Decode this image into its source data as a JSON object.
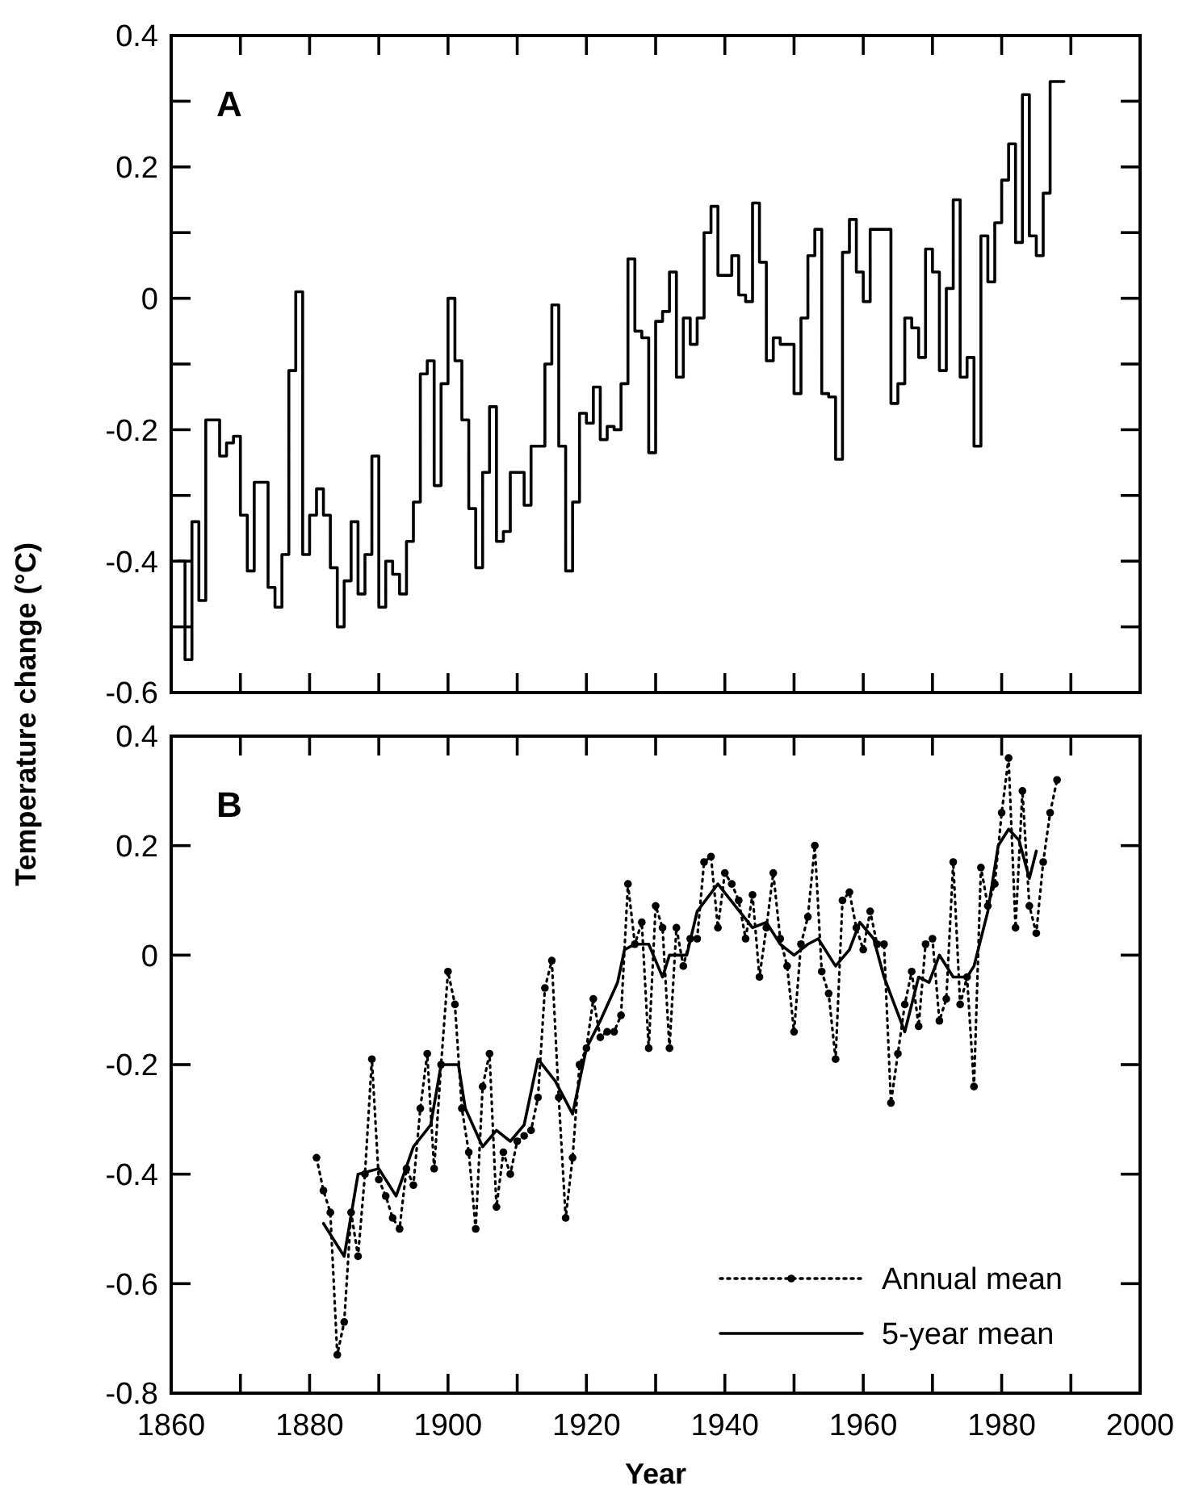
{
  "chart_data": [
    {
      "type": "step",
      "title": "A",
      "x": [
        1861,
        1862,
        1863,
        1864,
        1865,
        1866,
        1867,
        1868,
        1869,
        1870,
        1871,
        1872,
        1873,
        1874,
        1875,
        1876,
        1877,
        1878,
        1879,
        1880,
        1881,
        1882,
        1883,
        1884,
        1885,
        1886,
        1887,
        1888,
        1889,
        1890,
        1891,
        1892,
        1893,
        1894,
        1895,
        1896,
        1897,
        1898,
        1899,
        1900,
        1901,
        1902,
        1903,
        1904,
        1905,
        1906,
        1907,
        1908,
        1909,
        1910,
        1911,
        1912,
        1913,
        1914,
        1915,
        1916,
        1917,
        1918,
        1919,
        1920,
        1921,
        1922,
        1923,
        1924,
        1925,
        1926,
        1927,
        1928,
        1929,
        1930,
        1931,
        1932,
        1933,
        1934,
        1935,
        1936,
        1937,
        1938,
        1939,
        1940,
        1941,
        1942,
        1943,
        1944,
        1945,
        1946,
        1947,
        1948,
        1949,
        1950,
        1951,
        1952,
        1953,
        1954,
        1955,
        1956,
        1957,
        1958,
        1959,
        1960,
        1961,
        1962,
        1963,
        1964,
        1965,
        1966,
        1967,
        1968,
        1969,
        1970,
        1971,
        1972,
        1973,
        1974,
        1975,
        1976,
        1977,
        1978,
        1979,
        1980,
        1981,
        1982,
        1983,
        1984,
        1985,
        1986,
        1987,
        1988,
        1989
      ],
      "values": [
        -0.4,
        -0.55,
        -0.34,
        -0.46,
        -0.185,
        -0.185,
        -0.24,
        -0.22,
        -0.21,
        -0.33,
        -0.415,
        -0.28,
        -0.28,
        -0.44,
        -0.47,
        -0.39,
        -0.11,
        0.01,
        -0.39,
        -0.33,
        -0.29,
        -0.33,
        -0.41,
        -0.5,
        -0.43,
        -0.34,
        -0.45,
        -0.39,
        -0.24,
        -0.47,
        -0.4,
        -0.42,
        -0.45,
        -0.37,
        -0.31,
        -0.115,
        -0.095,
        -0.285,
        -0.13,
        0.0,
        -0.095,
        -0.185,
        -0.32,
        -0.41,
        -0.265,
        -0.165,
        -0.37,
        -0.355,
        -0.265,
        -0.265,
        -0.315,
        -0.225,
        -0.225,
        -0.1,
        -0.01,
        -0.225,
        -0.415,
        -0.31,
        -0.175,
        -0.19,
        -0.135,
        -0.215,
        -0.195,
        -0.2,
        -0.13,
        0.06,
        -0.05,
        -0.06,
        -0.235,
        -0.035,
        -0.02,
        0.04,
        -0.12,
        -0.03,
        -0.07,
        -0.03,
        0.1,
        0.14,
        0.035,
        0.035,
        0.065,
        0.005,
        -0.005,
        0.145,
        0.055,
        -0.095,
        -0.06,
        -0.07,
        -0.07,
        -0.145,
        -0.03,
        0.065,
        0.105,
        -0.145,
        -0.15,
        -0.245,
        0.07,
        0.12,
        0.04,
        -0.005,
        0.105,
        0.105,
        0.105,
        -0.16,
        -0.13,
        -0.03,
        -0.045,
        -0.09,
        0.075,
        0.04,
        -0.11,
        0.015,
        0.15,
        -0.12,
        -0.09,
        -0.225,
        0.095,
        0.025,
        0.115,
        0.18,
        0.235,
        0.085,
        0.31,
        0.095,
        0.065,
        0.16,
        0.33,
        0.33,
        0.33
      ],
      "color": "#000000",
      "xlim": [
        1860,
        2000
      ],
      "xticks": [
        {
          "value": 1860,
          "label": null
        },
        {
          "value": 1870,
          "label": null
        },
        {
          "value": 1880,
          "label": null
        },
        {
          "value": 1890,
          "label": null
        },
        {
          "value": 1900,
          "label": null
        },
        {
          "value": 1910,
          "label": null
        },
        {
          "value": 1920,
          "label": null
        },
        {
          "value": 1930,
          "label": null
        },
        {
          "value": 1940,
          "label": null
        },
        {
          "value": 1950,
          "label": null
        },
        {
          "value": 1960,
          "label": null
        },
        {
          "value": 1970,
          "label": null
        },
        {
          "value": 1980,
          "label": null
        },
        {
          "value": 1990,
          "label": null
        },
        {
          "value": 2000,
          "label": null
        }
      ],
      "ylim": [
        -0.6,
        0.4
      ],
      "yticks": [
        -0.6,
        {
          "value": -0.5,
          "label": null
        },
        -0.4,
        {
          "value": -0.3,
          "label": null
        },
        -0.2,
        {
          "value": -0.1,
          "label": null
        },
        0,
        {
          "value": 0.1,
          "label": null
        },
        0.2,
        {
          "value": 0.3,
          "label": null
        },
        0.4
      ],
      "tick_labels": "y"
    },
    {
      "type": "line",
      "title": "B",
      "xlabel": "Year",
      "ylabel": "Temperature change (°C)",
      "legend": "bottom right",
      "xlim": [
        1860,
        2000
      ],
      "xticks": [
        1860,
        {
          "value": 1870,
          "label": null
        },
        1880,
        {
          "value": 1890,
          "label": null
        },
        1900,
        {
          "value": 1910,
          "label": null
        },
        1920,
        {
          "value": 1930,
          "label": null
        },
        1940,
        {
          "value": 1950,
          "label": null
        },
        1960,
        {
          "value": 1970,
          "label": null
        },
        1980,
        {
          "value": 1990,
          "label": null
        },
        2000
      ],
      "ylim": [
        -0.8,
        0.4
      ],
      "yticks": [
        -0.8,
        -0.6,
        -0.4,
        -0.2,
        0,
        0.2,
        0.4
      ],
      "series": [
        {
          "name": "Annual mean",
          "type": "line",
          "color": "#000000",
          "line_style": "dotted",
          "marker": "circle",
          "x": [
            1881,
            1882,
            1883,
            1884,
            1885,
            1886,
            1887,
            1888,
            1889,
            1890,
            1891,
            1892,
            1893,
            1894,
            1895,
            1896,
            1897,
            1898,
            1899,
            1900,
            1901,
            1902,
            1903,
            1904,
            1905,
            1906,
            1907,
            1908,
            1909,
            1910,
            1911,
            1912,
            1913,
            1914,
            1915,
            1916,
            1917,
            1918,
            1919,
            1920,
            1921,
            1922,
            1923,
            1924,
            1925,
            1926,
            1927,
            1928,
            1929,
            1930,
            1931,
            1932,
            1933,
            1934,
            1935,
            1936,
            1937,
            1938,
            1939,
            1940,
            1941,
            1942,
            1943,
            1944,
            1945,
            1946,
            1947,
            1948,
            1949,
            1950,
            1951,
            1952,
            1953,
            1954,
            1955,
            1956,
            1957,
            1958,
            1959,
            1960,
            1961,
            1962,
            1963,
            1964,
            1965,
            1966,
            1967,
            1968,
            1969,
            1970,
            1971,
            1972,
            1973,
            1974,
            1975,
            1976,
            1977,
            1978,
            1979,
            1980,
            1981,
            1982,
            1983,
            1984,
            1985,
            1986,
            1987,
            1988
          ],
          "values": [
            -0.37,
            -0.43,
            -0.47,
            -0.73,
            -0.67,
            -0.47,
            -0.55,
            -0.4,
            -0.19,
            -0.41,
            -0.44,
            -0.48,
            -0.5,
            -0.39,
            -0.42,
            -0.28,
            -0.18,
            -0.39,
            -0.2,
            -0.03,
            -0.09,
            -0.28,
            -0.36,
            -0.5,
            -0.24,
            -0.18,
            -0.46,
            -0.36,
            -0.4,
            -0.34,
            -0.33,
            -0.32,
            -0.26,
            -0.06,
            -0.01,
            -0.26,
            -0.48,
            -0.37,
            -0.2,
            -0.17,
            -0.08,
            -0.15,
            -0.14,
            -0.14,
            -0.11,
            0.13,
            0.02,
            0.06,
            -0.17,
            0.09,
            0.05,
            -0.17,
            0.05,
            -0.02,
            0.03,
            0.03,
            0.17,
            0.18,
            0.05,
            0.15,
            0.13,
            0.1,
            0.03,
            0.11,
            -0.04,
            0.05,
            0.15,
            0.03,
            -0.02,
            -0.14,
            0.02,
            0.07,
            0.2,
            -0.03,
            -0.07,
            -0.19,
            0.1,
            0.115,
            0.05,
            0.01,
            0.08,
            0.02,
            0.02,
            -0.27,
            -0.18,
            -0.09,
            -0.03,
            -0.13,
            0.02,
            0.03,
            -0.12,
            -0.08,
            0.17,
            -0.09,
            -0.04,
            -0.24,
            0.16,
            0.09,
            0.13,
            0.26,
            0.36,
            0.05,
            0.3,
            0.09,
            0.04,
            0.17,
            0.26,
            0.32
          ]
        },
        {
          "name": "5-year mean",
          "type": "line",
          "color": "#000000",
          "line_style": "solid",
          "marker": "none",
          "x": [
            1882,
            1885,
            1887,
            1890,
            1892.5,
            1895,
            1897.5,
            1899,
            1901.5,
            1902.5,
            1905,
            1907,
            1909,
            1911,
            1913,
            1915.5,
            1918,
            1920,
            1922,
            1924.5,
            1925.5,
            1927,
            1929,
            1930,
            1931,
            1932,
            1934.5,
            1936,
            1939,
            1941.5,
            1944,
            1946,
            1948,
            1950,
            1952,
            1953.5,
            1956,
            1958,
            1959.5,
            1961.5,
            1963,
            1964.5,
            1966,
            1968,
            1969.5,
            1971,
            1973,
            1975,
            1976,
            1978,
            1979.5,
            1981,
            1982.5,
            1984,
            1985
          ],
          "values": [
            -0.49,
            -0.55,
            -0.4,
            -0.39,
            -0.44,
            -0.35,
            -0.31,
            -0.2,
            -0.2,
            -0.28,
            -0.35,
            -0.32,
            -0.34,
            -0.31,
            -0.19,
            -0.23,
            -0.29,
            -0.17,
            -0.12,
            -0.05,
            0.01,
            0.02,
            0.02,
            -0.01,
            -0.04,
            0.0,
            0.0,
            0.08,
            0.13,
            0.09,
            0.05,
            0.06,
            0.02,
            0.0,
            0.02,
            0.03,
            -0.02,
            0.01,
            0.06,
            0.03,
            -0.04,
            -0.09,
            -0.14,
            -0.04,
            -0.05,
            0.0,
            -0.04,
            -0.04,
            -0.02,
            0.08,
            0.2,
            0.23,
            0.21,
            0.14,
            0.19
          ]
        }
      ]
    }
  ]
}
